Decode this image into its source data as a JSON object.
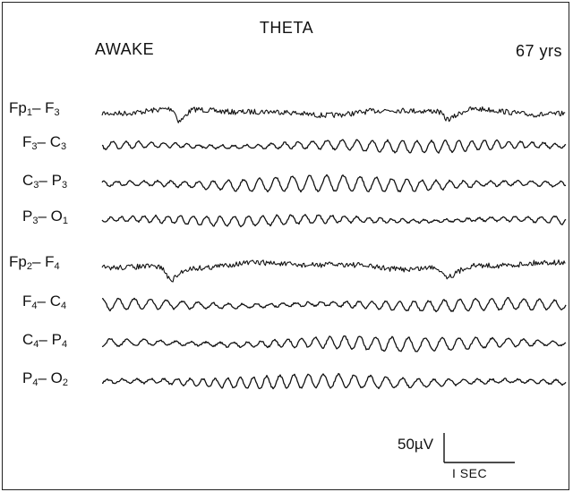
{
  "header": {
    "title": "THETA",
    "state": "AWAKE",
    "age": "67 yrs"
  },
  "channels": [
    {
      "a": "Fp",
      "as": "1",
      "b": "F",
      "bs": "3"
    },
    {
      "a": "F",
      "as": "3",
      "b": "C",
      "bs": "3"
    },
    {
      "a": "C",
      "as": "3",
      "b": "P",
      "bs": "3"
    },
    {
      "a": "P",
      "as": "3",
      "b": "O",
      "bs": "1"
    },
    {
      "a": "Fp",
      "as": "2",
      "b": "F",
      "bs": "4"
    },
    {
      "a": "F",
      "as": "4",
      "b": "C",
      "bs": "4"
    },
    {
      "a": "C",
      "as": "4",
      "b": "P",
      "bs": "4"
    },
    {
      "a": "P",
      "as": "4",
      "b": "O",
      "bs": "2"
    }
  ],
  "scale": {
    "voltage": "50µV",
    "time": "I SEC"
  },
  "colors": {
    "trace": "#111111"
  }
}
